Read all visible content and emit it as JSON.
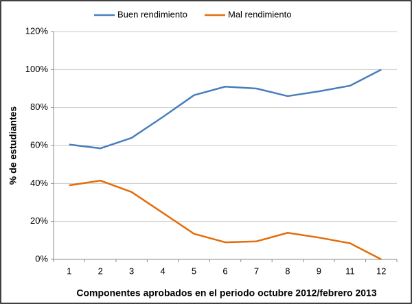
{
  "chart_data": {
    "type": "line",
    "x_label": "Componentes aprobados en el periodo octubre 2012/febrero 2013",
    "y_label": "% de estudiantes",
    "categories": [
      "1",
      "2",
      "3",
      "4",
      "5",
      "6",
      "7",
      "8",
      "9",
      "11",
      "12"
    ],
    "series": [
      {
        "name": "Buen rendimiento",
        "color": "#4a7ebb",
        "values": [
          60.5,
          58.5,
          64,
          75,
          86.5,
          91,
          90,
          86,
          88.5,
          91.5,
          100
        ]
      },
      {
        "name": "Mal rendimiento",
        "color": "#e46c0a",
        "values": [
          39,
          41.5,
          35.5,
          24.5,
          13.5,
          9,
          9.5,
          14,
          11.5,
          8.5,
          0
        ]
      }
    ],
    "ylim": [
      0,
      120
    ],
    "yticks": [
      {
        "value": 0,
        "label": "0%"
      },
      {
        "value": 20,
        "label": "20%"
      },
      {
        "value": 40,
        "label": "40%"
      },
      {
        "value": 60,
        "label": "60%"
      },
      {
        "value": 80,
        "label": "80%"
      },
      {
        "value": 100,
        "label": "100%"
      },
      {
        "value": 120,
        "label": "120%"
      }
    ],
    "grid": true,
    "legend": "top"
  }
}
